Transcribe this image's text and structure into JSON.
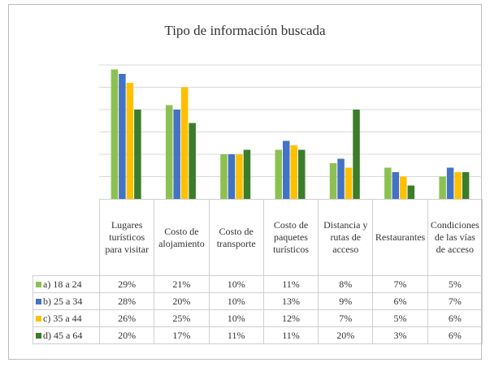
{
  "chart_data": {
    "type": "bar",
    "title": "Tipo de información buscada",
    "categories": [
      "Lugares turísticos para visitar",
      "Costo de alojamiento",
      "Costo de transporte",
      "Costo de paquetes turísticos",
      "Distancia y rutas de acceso",
      "Restaurantes",
      "Condiciones de las vías de acceso"
    ],
    "series": [
      {
        "name": "a) 18 a 24",
        "color": "#8cc152",
        "values": [
          29,
          21,
          10,
          11,
          8,
          7,
          5
        ],
        "value_labels": [
          "29%",
          "21%",
          "10%",
          "11%",
          "8%",
          "7%",
          "5%"
        ]
      },
      {
        "name": "b) 25 a 34",
        "color": "#4472c4",
        "values": [
          28,
          20,
          10,
          13,
          9,
          6,
          7
        ],
        "value_labels": [
          "28%",
          "20%",
          "10%",
          "13%",
          "9%",
          "6%",
          "7%"
        ]
      },
      {
        "name": "c) 35 a 44",
        "color": "#ffc000",
        "values": [
          26,
          25,
          10,
          12,
          7,
          5,
          6
        ],
        "value_labels": [
          "26%",
          "25%",
          "10%",
          "12%",
          "7%",
          "5%",
          "6%"
        ]
      },
      {
        "name": "d) 45 a 64",
        "color": "#3b7d2a",
        "values": [
          20,
          17,
          11,
          11,
          20,
          3,
          6
        ],
        "value_labels": [
          "20%",
          "17%",
          "11%",
          "11%",
          "20%",
          "3%",
          "6%"
        ]
      }
    ],
    "ylim": [
      0,
      30
    ],
    "ygrid": [
      5,
      10,
      15,
      20,
      25,
      30
    ],
    "grid": true
  }
}
